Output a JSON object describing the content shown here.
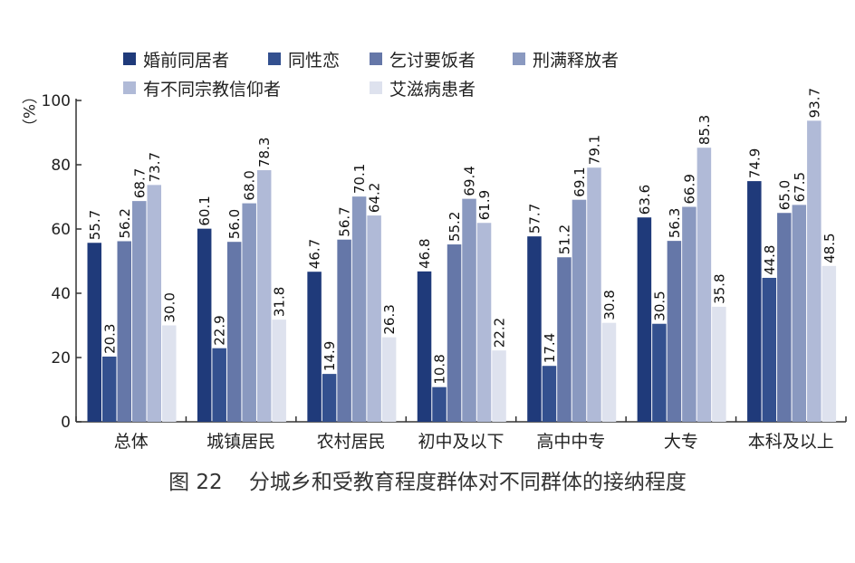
{
  "chart_data": {
    "type": "bar",
    "ylabel": "（%）",
    "ylim": [
      0,
      100
    ],
    "yticks": [
      0,
      20,
      40,
      60,
      80,
      100
    ],
    "grid": false,
    "legend_position": "top",
    "categories": [
      "总体",
      "城镇居民",
      "农村居民",
      "初中及以下",
      "高中中专",
      "大专",
      "本科及以上"
    ],
    "series": [
      {
        "name": "婚前同居者",
        "color": "#1f3a7a",
        "values": [
          55.7,
          60.1,
          46.7,
          46.8,
          57.7,
          63.6,
          74.9
        ]
      },
      {
        "name": "同性恋",
        "color": "#33508f",
        "values": [
          20.3,
          22.9,
          14.9,
          10.8,
          17.4,
          30.5,
          44.8
        ]
      },
      {
        "name": "乞讨要饭者",
        "color": "#6577a8",
        "values": [
          56.2,
          56.0,
          56.7,
          55.2,
          51.2,
          56.3,
          65.0
        ]
      },
      {
        "name": "刑满释放者",
        "color": "#8a99c0",
        "values": [
          68.7,
          68.0,
          70.1,
          69.4,
          69.1,
          66.9,
          67.5
        ]
      },
      {
        "name": "有不同宗教信仰者",
        "color": "#b0bad7",
        "values": [
          73.7,
          78.3,
          64.2,
          61.9,
          79.1,
          85.3,
          93.7
        ]
      },
      {
        "name": "艾滋病患者",
        "color": "#dee2ee",
        "values": [
          30.0,
          31.8,
          26.3,
          22.2,
          30.8,
          35.8,
          48.5
        ]
      }
    ],
    "title": "图 22    分城乡和受教育程度群体对不同群体的接纳程度"
  }
}
